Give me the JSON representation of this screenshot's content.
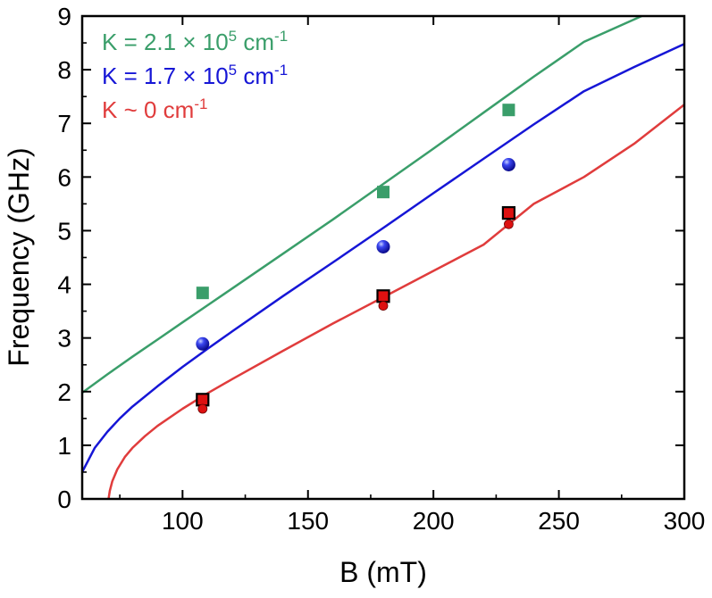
{
  "chart_data": {
    "type": "scatter",
    "title": "",
    "xlabel": "B (mT)",
    "ylabel": "Frequency (GHz)",
    "xlim": [
      60,
      300
    ],
    "ylim": [
      0,
      9
    ],
    "xticks": [
      100,
      150,
      200,
      250,
      300
    ],
    "yticks": [
      0,
      1,
      2,
      3,
      4,
      5,
      6,
      7,
      8,
      9
    ],
    "xtick_labels": [
      "100",
      "150",
      "200",
      "250",
      "300"
    ],
    "ytick_labels": [
      "0",
      "1",
      "2",
      "3",
      "4",
      "5",
      "6",
      "7",
      "8",
      "9"
    ],
    "grid": false,
    "legend": {
      "placement": "top-left",
      "entries": [
        {
          "prefix": "K = 2.1 × 10",
          "sup": "5",
          "mid": " cm",
          "sup2": "-1",
          "color": "#3a9e6a"
        },
        {
          "prefix": "K = 1.7 × 10",
          "sup": "5",
          "mid": " cm",
          "sup2": "-1",
          "color": "#1616d6"
        },
        {
          "prefix": "K ~ 0 cm",
          "sup": "",
          "mid": "",
          "sup2": "-1",
          "color": "#e03c3c"
        }
      ]
    },
    "fit_lines": [
      {
        "name": "K = 2.1e5 cm-1",
        "color": "#3a9e6a",
        "x": [
          60,
          70,
          80,
          90,
          100,
          110,
          120,
          140,
          160,
          180,
          200,
          220,
          240,
          260,
          283
        ],
        "y": [
          1.98,
          2.32,
          2.65,
          2.97,
          3.29,
          3.61,
          3.93,
          4.57,
          5.21,
          5.87,
          6.53,
          7.2,
          7.87,
          8.52,
          9.0
        ]
      },
      {
        "name": "K = 1.7e5 cm-1",
        "color": "#1616d6",
        "x": [
          60,
          65,
          70,
          75,
          80,
          90,
          100,
          110,
          120,
          140,
          160,
          180,
          200,
          220,
          240,
          260,
          280,
          300
        ],
        "y": [
          0.5,
          0.95,
          1.25,
          1.5,
          1.72,
          2.1,
          2.46,
          2.8,
          3.13,
          3.78,
          4.41,
          5.05,
          5.7,
          6.34,
          6.98,
          7.6,
          8.05,
          8.48
        ]
      },
      {
        "name": "K ~ 0 cm-1",
        "color": "#e03c3c",
        "x": [
          70.5,
          71,
          72,
          74,
          77,
          80,
          85,
          90,
          100,
          110,
          120,
          140,
          160,
          180,
          200,
          220,
          240,
          260,
          280,
          300
        ],
        "y": [
          0,
          0.15,
          0.33,
          0.55,
          0.78,
          0.95,
          1.17,
          1.36,
          1.68,
          1.97,
          2.24,
          2.76,
          3.27,
          3.76,
          4.25,
          4.74,
          5.5,
          6.0,
          6.62,
          7.35
        ]
      }
    ],
    "series": [
      {
        "name": "green squares",
        "marker": "square",
        "color": "#3a9e6a",
        "points": [
          {
            "x": 108,
            "y": 3.84
          },
          {
            "x": 180,
            "y": 5.72
          },
          {
            "x": 230,
            "y": 7.25
          }
        ]
      },
      {
        "name": "blue spheres",
        "marker": "sphere",
        "color": "#1616d6",
        "points": [
          {
            "x": 108,
            "y": 2.89
          },
          {
            "x": 180,
            "y": 4.7
          },
          {
            "x": 230,
            "y": 6.23
          }
        ]
      },
      {
        "name": "red squares",
        "marker": "square-outlined",
        "color": "#dd1111",
        "points": [
          {
            "x": 108,
            "y": 1.85
          },
          {
            "x": 180,
            "y": 3.78
          },
          {
            "x": 230,
            "y": 5.33
          }
        ]
      },
      {
        "name": "red dots",
        "marker": "dot",
        "color": "#dd1111",
        "points": [
          {
            "x": 108,
            "y": 1.68
          },
          {
            "x": 180,
            "y": 3.6
          },
          {
            "x": 230,
            "y": 5.12
          }
        ]
      }
    ]
  }
}
